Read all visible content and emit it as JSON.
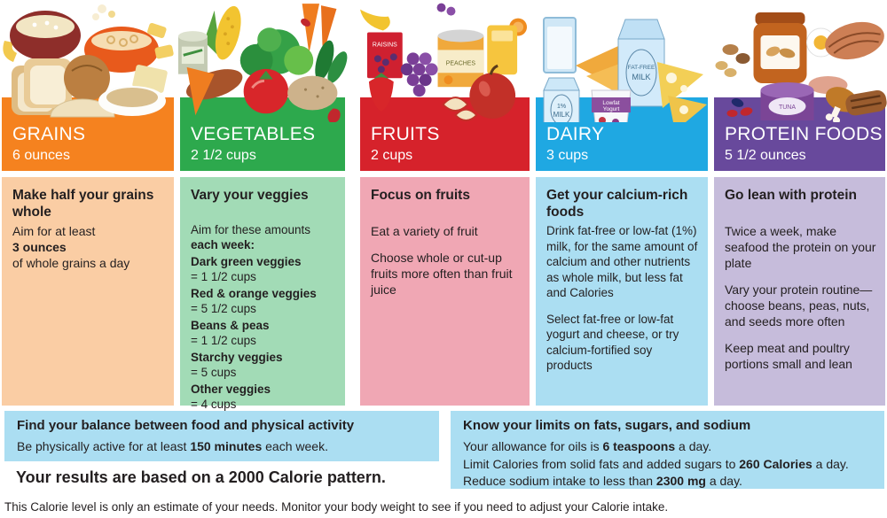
{
  "poster": {
    "text_color": "#231f20",
    "info_box_color": "#abdef2",
    "results_line": "Your results are based on a 2000 Calorie pattern.",
    "footnote": "This Calorie level is only an estimate of your needs. Monitor your body weight to see if you need to adjust your Calorie intake."
  },
  "columns": [
    {
      "id": "grains",
      "title": "GRAINS",
      "amount": "6 ounces",
      "header_color": "#f5821f",
      "body_color": "#facda4",
      "heading": "Make half your grains whole",
      "illustration": "grains-foods-illustration",
      "blocks": [
        {
          "cls": "para",
          "seg": [
            {
              "t": "Aim for at least"
            }
          ]
        },
        {
          "cls": "line",
          "seg": [
            {
              "t": "3 ounces",
              "b": 1
            }
          ]
        },
        {
          "cls": "line",
          "seg": [
            {
              "t": "of whole grains a day"
            }
          ]
        }
      ]
    },
    {
      "id": "vegetables",
      "title": "VEGETABLES",
      "amount": "2 1/2 cups",
      "header_color": "#2da94d",
      "body_color": "#a2dbb6",
      "heading": "Vary your veggies",
      "illustration": "vegetables-illustration",
      "blocks": [
        {
          "cls": "para",
          "seg": [
            {
              "t": "Aim for these amounts"
            }
          ]
        },
        {
          "cls": "line",
          "seg": [
            {
              "t": "each week:",
              "b": 1
            }
          ]
        },
        {
          "cls": "item",
          "seg": [
            {
              "t": "Dark green veggies",
              "b": 1
            }
          ]
        },
        {
          "cls": "line",
          "seg": [
            {
              "t": "= 1 1/2 cups"
            }
          ]
        },
        {
          "cls": "item",
          "seg": [
            {
              "t": "Red & orange veggies",
              "b": 1
            }
          ]
        },
        {
          "cls": "line",
          "seg": [
            {
              "t": "= 5 1/2 cups"
            }
          ]
        },
        {
          "cls": "item",
          "seg": [
            {
              "t": "Beans & peas",
              "b": 1
            }
          ]
        },
        {
          "cls": "line",
          "seg": [
            {
              "t": "= 1 1/2 cups"
            }
          ]
        },
        {
          "cls": "item",
          "seg": [
            {
              "t": "Starchy veggies",
              "b": 1
            }
          ]
        },
        {
          "cls": "line",
          "seg": [
            {
              "t": "= 5 cups"
            }
          ]
        },
        {
          "cls": "item",
          "seg": [
            {
              "t": "Other veggies",
              "b": 1
            }
          ]
        },
        {
          "cls": "line",
          "seg": [
            {
              "t": "= 4 cups"
            }
          ]
        }
      ]
    },
    {
      "id": "fruits",
      "title": "FRUITS",
      "amount": "2 cups",
      "header_color": "#d6222b",
      "body_color": "#f0a7b4",
      "heading": "Focus on fruits",
      "illustration": "fruits-illustration",
      "blocks": [
        {
          "cls": "para",
          "seg": [
            {
              "t": "Eat a variety of fruit"
            }
          ]
        },
        {
          "cls": "gap",
          "seg": [
            {
              "t": "Choose whole or cut-up fruits more often than fruit juice"
            }
          ]
        }
      ]
    },
    {
      "id": "dairy",
      "title": "DAIRY",
      "amount": "3 cups",
      "header_color": "#1fa8e2",
      "body_color": "#abdef2",
      "heading": "Get your calcium-rich foods",
      "illustration": "dairy-illustration",
      "blocks": [
        {
          "cls": "para",
          "seg": [
            {
              "t": "Drink fat-free or low-fat (1%) milk, for the same amount of calcium and other nutrients as whole milk, but less fat and Calories"
            }
          ]
        },
        {
          "cls": "gap",
          "seg": [
            {
              "t": "Select fat-free or low-fat yogurt and cheese, or try calcium-fortified soy products"
            }
          ]
        }
      ]
    },
    {
      "id": "protein",
      "title": "PROTEIN FOODS",
      "amount": "5 1/2 ounces",
      "header_color": "#68499c",
      "body_color": "#c6bcdb",
      "heading": "Go lean with protein",
      "illustration": "protein-foods-illustration",
      "blocks": [
        {
          "cls": "para",
          "seg": [
            {
              "t": "Twice a week, make seafood the protein on your plate"
            }
          ]
        },
        {
          "cls": "gap",
          "seg": [
            {
              "t": "Vary your protein routine—choose beans, peas, nuts, and seeds more often"
            }
          ]
        },
        {
          "cls": "gap",
          "seg": [
            {
              "t": "Keep meat and poultry portions small and lean"
            }
          ]
        }
      ]
    }
  ],
  "balance_box": {
    "heading": "Find your balance between food and physical activity",
    "blocks": [
      {
        "cls": "line",
        "seg": [
          {
            "t": "Be physically active for at least "
          },
          {
            "t": "150 minutes",
            "b": 1
          },
          {
            "t": " each week."
          }
        ]
      }
    ]
  },
  "limits_box": {
    "heading": "Know your limits on fats, sugars, and sodium",
    "blocks": [
      {
        "cls": "line",
        "seg": [
          {
            "t": "Your allowance for oils is "
          },
          {
            "t": "6 teaspoons",
            "b": 1
          },
          {
            "t": " a day."
          }
        ]
      },
      {
        "cls": "line",
        "seg": [
          {
            "t": "Limit Calories from solid fats and added sugars to "
          },
          {
            "t": "260 Calories",
            "b": 1
          },
          {
            "t": " a day."
          }
        ]
      },
      {
        "cls": "line",
        "seg": [
          {
            "t": "Reduce sodium intake to less than "
          },
          {
            "t": "2300 mg",
            "b": 1
          },
          {
            "t": " a day."
          }
        ]
      }
    ]
  },
  "illustration_labels": {
    "raisins": "RAISINS",
    "peaches": "PEACHES",
    "fat_free": "FAT-FREE",
    "fat_free_milk": "MILK",
    "one_percent": "1%",
    "one_percent_milk": "MILK",
    "yogurt_line1": "Lowfat",
    "yogurt_line2": "Yogurt",
    "tuna": "TUNA"
  }
}
